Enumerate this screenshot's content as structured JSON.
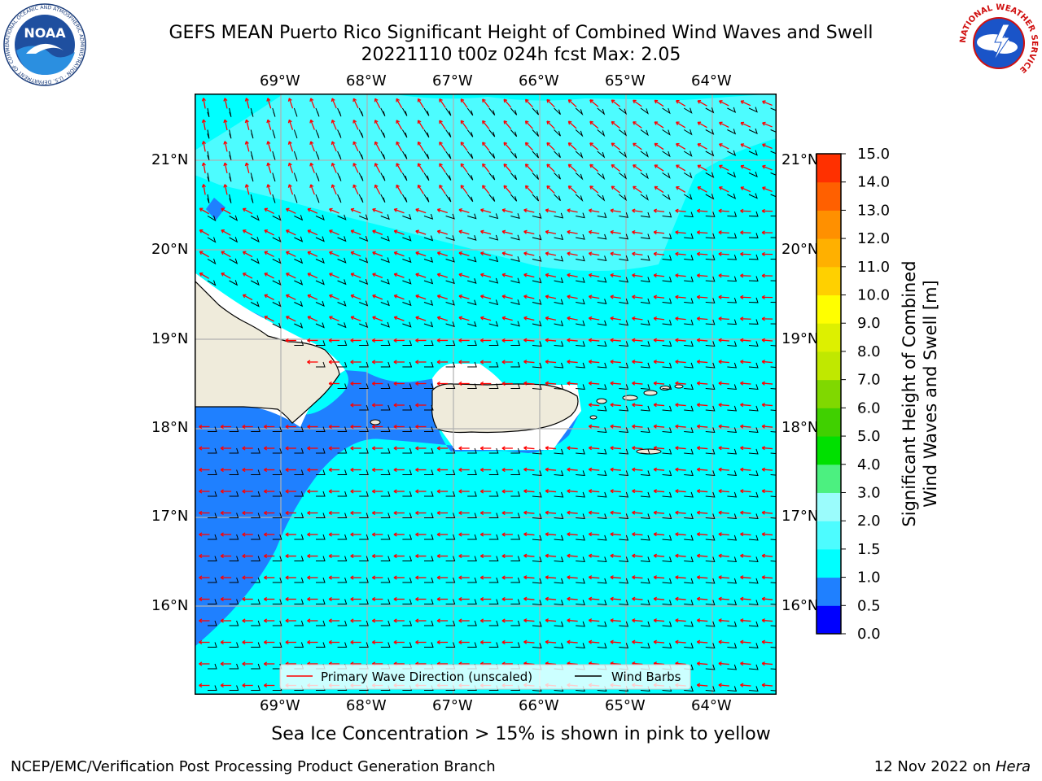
{
  "header": {
    "title_line1": "GEFS MEAN Puerto Rico Significant Height of Combined Wind Waves and Swell",
    "title_line2": "20221110 t00z 024h fcst   Max: 2.05"
  },
  "logos": {
    "noaa_text": "NOAA",
    "noaa_ring": "NATIONAL OCEANIC AND ATMOSPHERIC ADMINISTRATION · U.S. DEPARTMENT OF COMMERCE",
    "nws_ring": "NATIONAL WEATHER SERVICE"
  },
  "map": {
    "lon_labels": [
      "69°W",
      "68°W",
      "67°W",
      "66°W",
      "65°W",
      "64°W"
    ],
    "lat_labels": [
      "21°N",
      "20°N",
      "19°N",
      "18°N",
      "17°N",
      "16°N"
    ],
    "legend": {
      "wave_label": "Primary Wave Direction (unscaled)",
      "barb_label": "Wind Barbs"
    },
    "colors": {
      "band_0_5_1_0": "#1f80ff",
      "band_1_0_1_5": "#00ffff",
      "band_1_5_2_0": "#4dfcff",
      "land": "#efebdb",
      "wave_arrow": "#ff0000",
      "wind_barb": "#000000"
    }
  },
  "colorbar": {
    "label_line1": "Significant Height of Combined",
    "label_line2": "Wind Waves and Swell [m]",
    "ticks": [
      "0.0",
      "0.5",
      "1.0",
      "1.5",
      "2.0",
      "3.0",
      "4.0",
      "5.0",
      "6.0",
      "7.0",
      "8.0",
      "9.0",
      "10.0",
      "11.0",
      "12.0",
      "13.0",
      "14.0",
      "15.0"
    ],
    "colors": [
      "#0000ff",
      "#1f80ff",
      "#00ffff",
      "#4dfcff",
      "#9bfcfc",
      "#4cf080",
      "#00e000",
      "#40d000",
      "#80d800",
      "#c0e800",
      "#ddf000",
      "#ffff00",
      "#ffd000",
      "#ffb000",
      "#ff9000",
      "#ff6000",
      "#ff3000"
    ]
  },
  "note": "Sea Ice Concentration > 15% is shown in pink to yellow",
  "footer": {
    "left": "NCEP/EMC/Verification Post Processing Product Generation Branch",
    "date": "12 Nov 2022 on ",
    "host": "Hera"
  }
}
